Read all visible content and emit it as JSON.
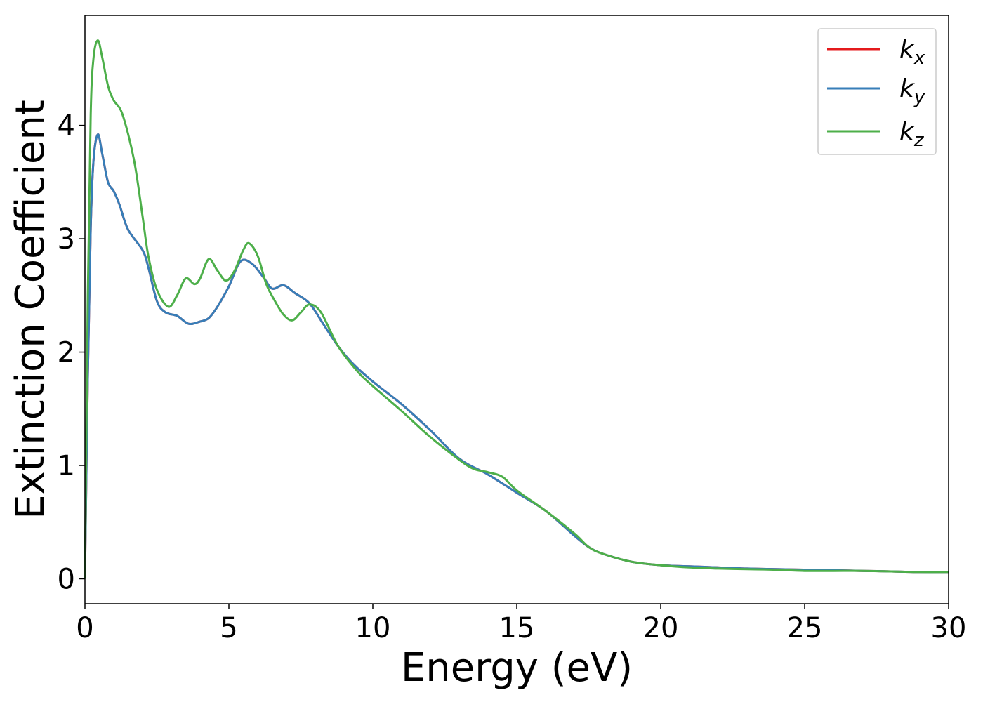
{
  "chart_data": {
    "type": "line",
    "xlabel": "Energy (eV)",
    "ylabel": "Extinction Coefficient",
    "xlim": [
      0,
      30
    ],
    "ylim": [
      -0.22,
      4.97
    ],
    "xticks": [
      0,
      5,
      10,
      15,
      20,
      25,
      30
    ],
    "yticks": [
      0,
      1,
      2,
      3,
      4
    ],
    "grid": false,
    "legend_position": "top-right",
    "series": [
      {
        "name": "k_x",
        "label_main": "k",
        "label_sub": "x",
        "color": "#e41a1c",
        "x": [
          0,
          0.1,
          0.2,
          0.3,
          0.45,
          0.6,
          0.8,
          1.0,
          1.2,
          1.5,
          2.0,
          2.2,
          2.5,
          2.8,
          3.2,
          3.6,
          4.0,
          4.3,
          4.6,
          5.0,
          5.4,
          5.8,
          6.2,
          6.5,
          6.9,
          7.3,
          7.8,
          8.3,
          8.8,
          9.3,
          10.0,
          11.0,
          12.0,
          13.0,
          14.0,
          15.0,
          16.0,
          17.0,
          17.5,
          18.0,
          19.0,
          20.0,
          21.0,
          22.0,
          23.0,
          24.0,
          25.0,
          26.0,
          27.0,
          28.0,
          29.0,
          30.0
        ],
        "y": [
          0.0,
          1.8,
          3.1,
          3.7,
          3.92,
          3.75,
          3.5,
          3.42,
          3.3,
          3.08,
          2.9,
          2.75,
          2.45,
          2.35,
          2.32,
          2.25,
          2.27,
          2.3,
          2.4,
          2.58,
          2.8,
          2.78,
          2.66,
          2.56,
          2.59,
          2.52,
          2.43,
          2.24,
          2.05,
          1.9,
          1.74,
          1.54,
          1.31,
          1.06,
          0.92,
          0.76,
          0.6,
          0.38,
          0.28,
          0.22,
          0.15,
          0.12,
          0.11,
          0.1,
          0.09,
          0.085,
          0.08,
          0.075,
          0.07,
          0.065,
          0.06,
          0.06
        ]
      },
      {
        "name": "k_y",
        "label_main": "k",
        "label_sub": "y",
        "color": "#377eb8",
        "x": [
          0,
          0.1,
          0.2,
          0.3,
          0.45,
          0.6,
          0.8,
          1.0,
          1.2,
          1.5,
          2.0,
          2.2,
          2.5,
          2.8,
          3.2,
          3.6,
          4.0,
          4.3,
          4.6,
          5.0,
          5.4,
          5.8,
          6.2,
          6.5,
          6.9,
          7.3,
          7.8,
          8.3,
          8.8,
          9.3,
          10.0,
          11.0,
          12.0,
          13.0,
          14.0,
          15.0,
          16.0,
          17.0,
          17.5,
          18.0,
          19.0,
          20.0,
          21.0,
          22.0,
          23.0,
          24.0,
          25.0,
          26.0,
          27.0,
          28.0,
          29.0,
          30.0
        ],
        "y": [
          0.0,
          1.8,
          3.1,
          3.7,
          3.92,
          3.75,
          3.5,
          3.42,
          3.3,
          3.08,
          2.9,
          2.75,
          2.45,
          2.35,
          2.32,
          2.25,
          2.27,
          2.3,
          2.4,
          2.58,
          2.8,
          2.78,
          2.66,
          2.56,
          2.59,
          2.52,
          2.43,
          2.24,
          2.05,
          1.9,
          1.74,
          1.54,
          1.31,
          1.06,
          0.92,
          0.76,
          0.6,
          0.38,
          0.28,
          0.22,
          0.15,
          0.12,
          0.11,
          0.1,
          0.09,
          0.085,
          0.08,
          0.075,
          0.07,
          0.065,
          0.06,
          0.06
        ]
      },
      {
        "name": "k_z",
        "label_main": "k",
        "label_sub": "z",
        "color": "#4daf4a",
        "x": [
          0,
          0.1,
          0.2,
          0.3,
          0.45,
          0.6,
          0.8,
          1.0,
          1.3,
          1.7,
          2.0,
          2.2,
          2.5,
          2.9,
          3.2,
          3.5,
          3.8,
          4.0,
          4.3,
          4.6,
          4.9,
          5.2,
          5.5,
          5.7,
          6.0,
          6.3,
          6.6,
          6.9,
          7.2,
          7.5,
          7.8,
          8.2,
          8.8,
          9.5,
          10.0,
          11.0,
          12.0,
          13.0,
          13.5,
          14.0,
          14.5,
          15.0,
          16.0,
          17.0,
          17.5,
          18.0,
          19.0,
          20.0,
          21.0,
          22.0,
          23.0,
          24.0,
          25.0,
          26.0,
          27.0,
          28.0,
          29.0,
          30.0
        ],
        "y": [
          0.0,
          2.5,
          4.1,
          4.6,
          4.75,
          4.6,
          4.35,
          4.22,
          4.1,
          3.7,
          3.2,
          2.85,
          2.55,
          2.4,
          2.5,
          2.65,
          2.6,
          2.65,
          2.82,
          2.72,
          2.63,
          2.72,
          2.9,
          2.96,
          2.85,
          2.6,
          2.45,
          2.33,
          2.28,
          2.35,
          2.42,
          2.35,
          2.05,
          1.82,
          1.7,
          1.48,
          1.25,
          1.05,
          0.97,
          0.94,
          0.9,
          0.78,
          0.6,
          0.4,
          0.28,
          0.22,
          0.15,
          0.12,
          0.1,
          0.09,
          0.085,
          0.08,
          0.07,
          0.07,
          0.07,
          0.065,
          0.06,
          0.06
        ]
      }
    ]
  }
}
